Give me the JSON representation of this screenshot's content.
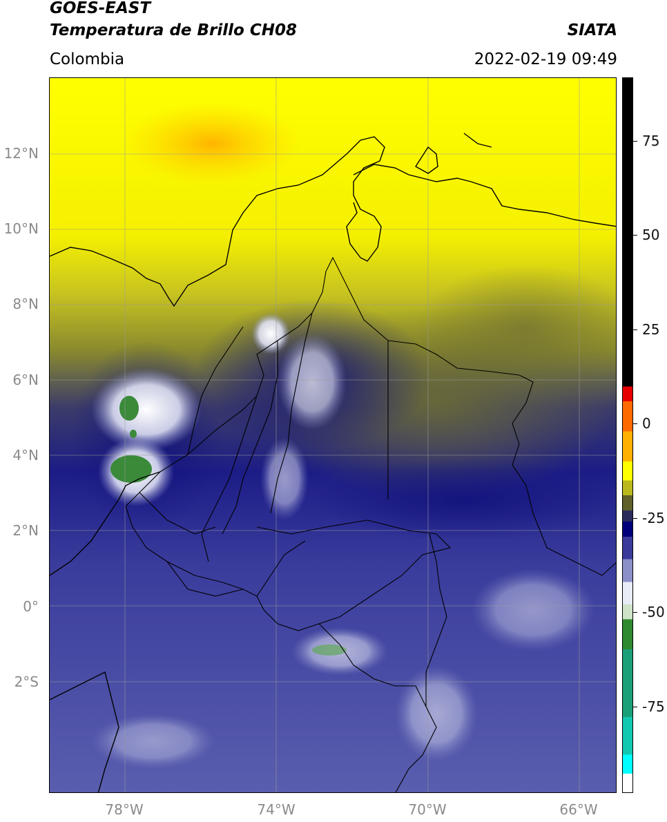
{
  "header": {
    "title_line1": "GOES-EAST",
    "title_line2": "Temperatura de Brillo CH08",
    "brand": "SIATA",
    "region": "Colombia",
    "datetime": "2022-02-19 09:49"
  },
  "map": {
    "latitude_labels": [
      "12°N",
      "10°N",
      "8°N",
      "6°N",
      "4°N",
      "2°N",
      "0°",
      "2°S"
    ],
    "longitude_labels": [
      "78°W",
      "74°W",
      "70°W",
      "66°W"
    ],
    "extent": {
      "lon_min": -80,
      "lon_max": -65,
      "lat_min": -5,
      "lat_max": 14
    },
    "land_colors": {
      "ocean_yellow": "#ffff00",
      "olive": "#7b7b2a",
      "navy": "#1a1a7a",
      "lavender": "#8c90c8",
      "white_cloud": "#ffffff",
      "green": "#3a8a3a"
    }
  },
  "colorbar": {
    "labels": [
      "75",
      "50",
      "25",
      "0",
      "-25",
      "-50",
      "-75"
    ],
    "values": [
      75,
      50,
      25,
      0,
      -25,
      -50,
      -75
    ],
    "range": [
      -100,
      90
    ],
    "segments": [
      {
        "from": 90,
        "to": 8,
        "color": "#000000"
      },
      {
        "from": 8,
        "to": 4,
        "color": "#e60000"
      },
      {
        "from": 4,
        "to": -4,
        "color": "#ff6a00"
      },
      {
        "from": -4,
        "to": -12,
        "color": "#ffb000"
      },
      {
        "from": -12,
        "to": -17,
        "color": "#ffff00"
      },
      {
        "from": -17,
        "to": -21,
        "color": "#b9b91e"
      },
      {
        "from": -21,
        "to": -25,
        "color": "#60602a"
      },
      {
        "from": -25,
        "to": -28,
        "color": "#2b2b5a"
      },
      {
        "from": -28,
        "to": -32,
        "color": "#00007a"
      },
      {
        "from": -32,
        "to": -38,
        "color": "#3a3a9a"
      },
      {
        "from": -38,
        "to": -44,
        "color": "#8c90c8"
      },
      {
        "from": -44,
        "to": -50,
        "color": "#e8ecf6"
      },
      {
        "from": -50,
        "to": -54,
        "color": "#cfe3c8"
      },
      {
        "from": -54,
        "to": -62,
        "color": "#2f8a2f"
      },
      {
        "from": -62,
        "to": -80,
        "color": "#1aa079"
      },
      {
        "from": -80,
        "to": -90,
        "color": "#12c8b0"
      },
      {
        "from": -90,
        "to": -95,
        "color": "#00ffff"
      },
      {
        "from": -95,
        "to": -100,
        "color": "#ffffff"
      }
    ]
  }
}
